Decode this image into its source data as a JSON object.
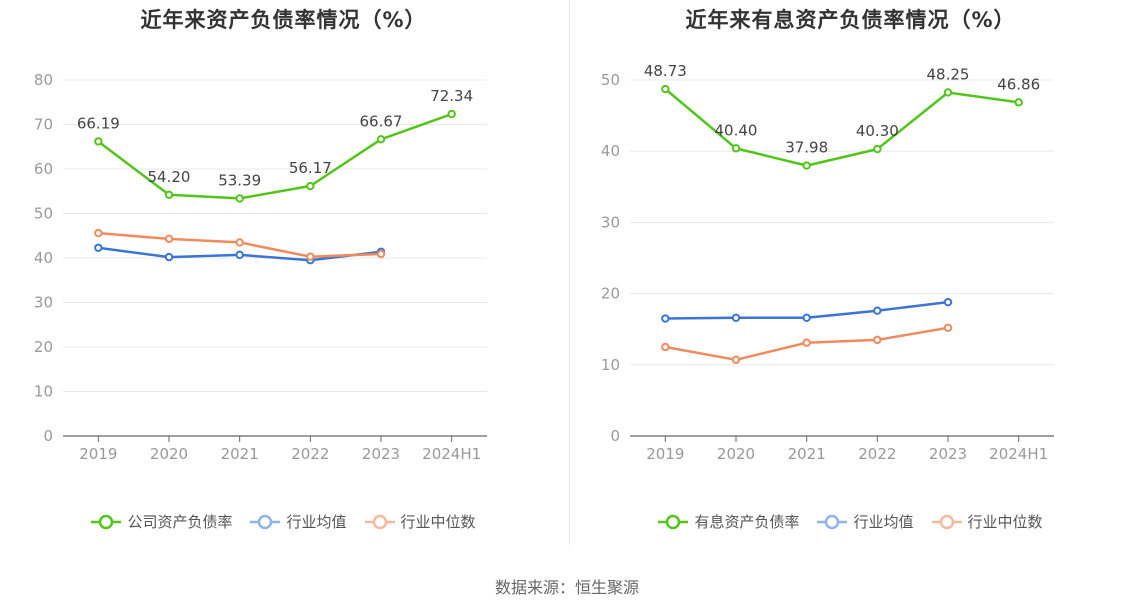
{
  "source": "数据来源：恒生聚源",
  "chart_data": [
    {
      "type": "line",
      "title": "近年来资产负债率情况（%）",
      "categories": [
        "2019",
        "2020",
        "2021",
        "2022",
        "2023",
        "2024H1"
      ],
      "ylim": [
        0,
        80
      ],
      "yticks": [
        0,
        10,
        20,
        30,
        40,
        50,
        60,
        70,
        80
      ],
      "grid": true,
      "legend_position": "bottom",
      "series": [
        {
          "name": "公司资产负债率",
          "color": "#52c41a",
          "show_labels": true,
          "values": [
            66.19,
            54.2,
            53.39,
            56.17,
            66.67,
            72.34
          ],
          "labels": [
            "66.19",
            "54.20",
            "53.39",
            "56.17",
            "66.67",
            "72.34"
          ]
        },
        {
          "name": "行业均值",
          "color": "#3a75d6",
          "legend_color": "#8fb3ea",
          "show_labels": false,
          "values": [
            42.3,
            40.2,
            40.7,
            39.5,
            41.4,
            null
          ]
        },
        {
          "name": "行业中位数",
          "color": "#f08a5d",
          "legend_color": "#f7b89d",
          "show_labels": false,
          "values": [
            45.6,
            44.3,
            43.5,
            40.3,
            40.9,
            null
          ]
        }
      ]
    },
    {
      "type": "line",
      "title": "近年来有息资产负债率情况（%）",
      "categories": [
        "2019",
        "2020",
        "2021",
        "2022",
        "2023",
        "2024H1"
      ],
      "ylim": [
        0,
        50
      ],
      "yticks": [
        0,
        10,
        20,
        30,
        40,
        50
      ],
      "grid": true,
      "legend_position": "bottom",
      "series": [
        {
          "name": "有息资产负债率",
          "color": "#52c41a",
          "show_labels": true,
          "values": [
            48.73,
            40.4,
            37.98,
            40.3,
            48.25,
            46.86
          ],
          "labels": [
            "48.73",
            "40.40",
            "37.98",
            "40.30",
            "48.25",
            "46.86"
          ]
        },
        {
          "name": "行业均值",
          "color": "#3a75d6",
          "legend_color": "#8fb3ea",
          "show_labels": false,
          "values": [
            16.5,
            16.6,
            16.6,
            17.6,
            18.8,
            null
          ]
        },
        {
          "name": "行业中位数",
          "color": "#f08a5d",
          "legend_color": "#f7b89d",
          "show_labels": false,
          "values": [
            12.5,
            10.7,
            13.1,
            13.5,
            15.2,
            null
          ]
        }
      ]
    }
  ]
}
